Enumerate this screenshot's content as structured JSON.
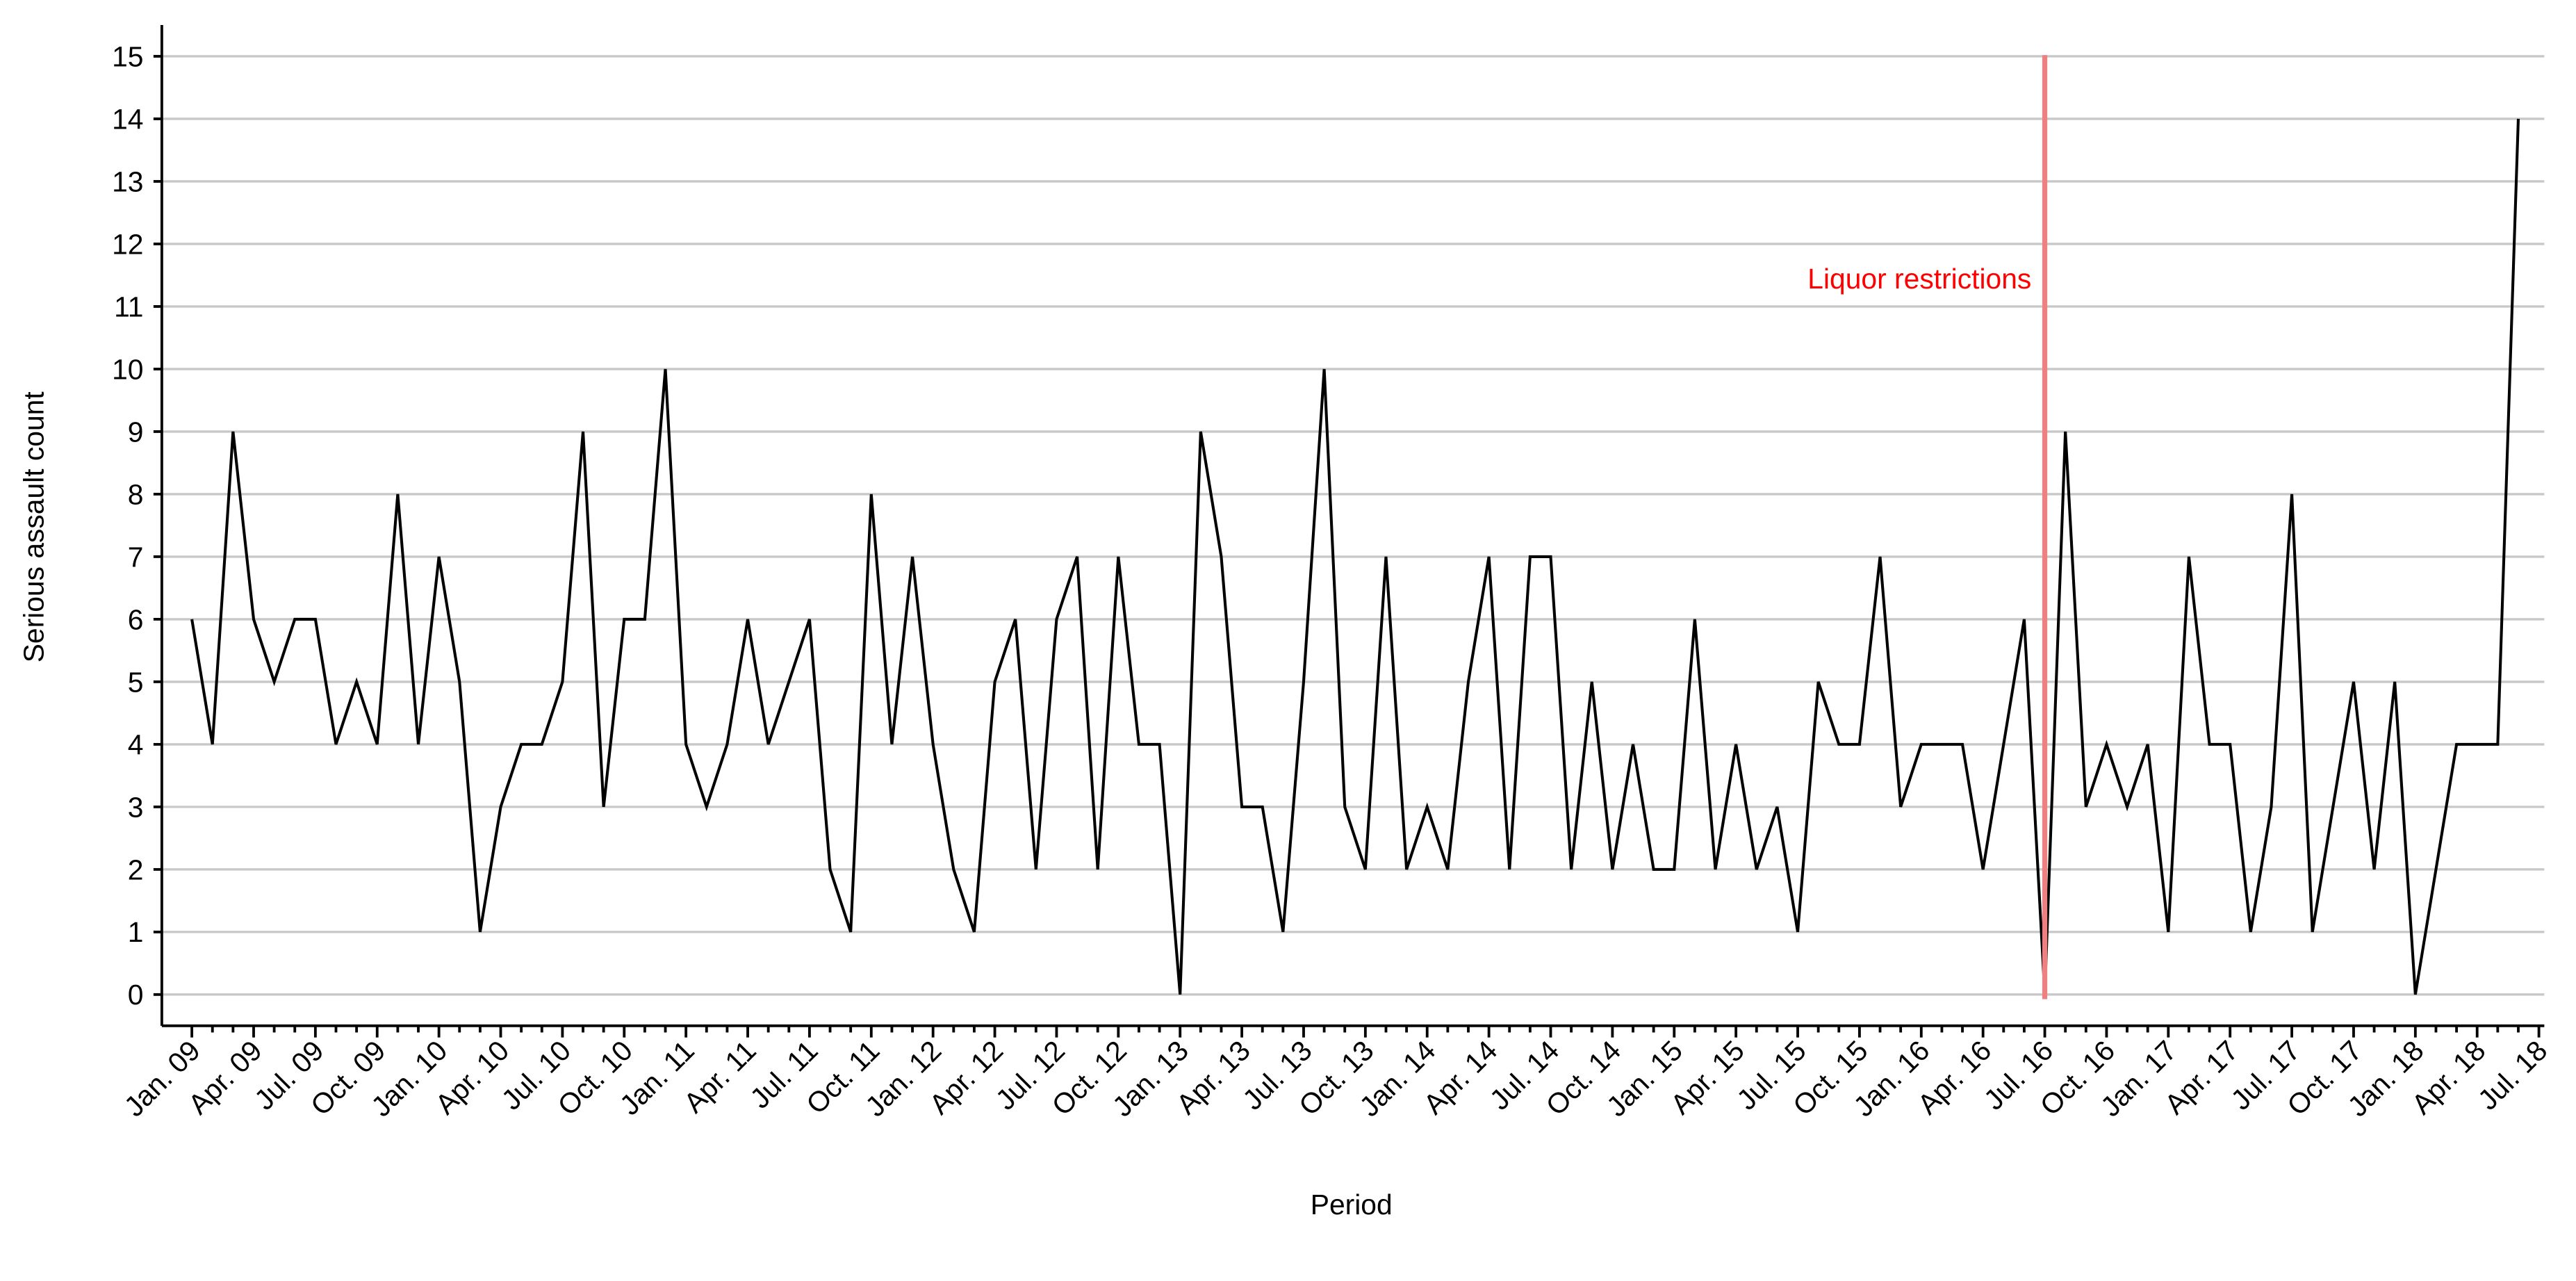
{
  "chart_data": {
    "type": "line",
    "x_label": "Period",
    "y_label": "Serious assault count",
    "categories": [
      "Jan. 09",
      null,
      null,
      "Apr. 09",
      null,
      null,
      "Jul. 09",
      null,
      null,
      "Oct. 09",
      null,
      null,
      "Jan. 10",
      null,
      null,
      "Apr. 10",
      null,
      null,
      "Jul. 10",
      null,
      null,
      "Oct. 10",
      null,
      null,
      "Jan. 11",
      null,
      null,
      "Apr. 11",
      null,
      null,
      "Jul. 11",
      null,
      null,
      "Oct. 11",
      null,
      null,
      "Jan. 12",
      null,
      null,
      "Apr. 12",
      null,
      null,
      "Jul. 12",
      null,
      null,
      "Oct. 12",
      null,
      null,
      "Jan. 13",
      null,
      null,
      "Apr. 13",
      null,
      null,
      "Jul. 13",
      null,
      null,
      "Oct. 13",
      null,
      null,
      "Jan. 14",
      null,
      null,
      "Apr. 14",
      null,
      null,
      "Jul. 14",
      null,
      null,
      "Oct. 14",
      null,
      null,
      "Jan. 15",
      null,
      null,
      "Apr. 15",
      null,
      null,
      "Jul. 15",
      null,
      null,
      "Oct. 15",
      null,
      null,
      "Jan. 16",
      null,
      null,
      "Apr. 16",
      null,
      null,
      "Jul. 16",
      null,
      null,
      "Oct. 16",
      null,
      null,
      "Jan. 17",
      null,
      null,
      "Apr. 17",
      null,
      null,
      "Jul. 17",
      null,
      null,
      "Oct. 17",
      null,
      null,
      "Jan. 18",
      null,
      null,
      "Apr. 18",
      null,
      null,
      "Jul. 18"
    ],
    "values": [
      6,
      4,
      9,
      6,
      5,
      6,
      6,
      4,
      5,
      4,
      8,
      4,
      7,
      5,
      1,
      3,
      4,
      4,
      5,
      9,
      3,
      6,
      6,
      10,
      4,
      3,
      4,
      6,
      4,
      5,
      6,
      2,
      1,
      8,
      4,
      7,
      4,
      2,
      1,
      5,
      6,
      2,
      6,
      7,
      2,
      7,
      4,
      4,
      0,
      9,
      7,
      3,
      3,
      1,
      5,
      10,
      3,
      2,
      7,
      2,
      3,
      2,
      5,
      7,
      2,
      7,
      7,
      2,
      5,
      2,
      4,
      2,
      2,
      6,
      2,
      4,
      2,
      3,
      1,
      5,
      4,
      4,
      7,
      3,
      4,
      4,
      4,
      2,
      4,
      6,
      0,
      9,
      3,
      4,
      3,
      4,
      1,
      7,
      4,
      4,
      1,
      3,
      8,
      1,
      3,
      5,
      2,
      5,
      0,
      2,
      4,
      4,
      4,
      14,
      null
    ],
    "color": "#000000",
    "ylim": [
      -0.5,
      15.5
    ],
    "yticks": [
      0,
      1,
      2,
      3,
      4,
      5,
      6,
      7,
      8,
      9,
      10,
      11,
      12,
      13,
      14,
      15
    ],
    "grid": true,
    "annotations": [
      {
        "text": "Liquor restrictions",
        "x": "Jul. 16",
        "color": "#f08080",
        "text_color": "#ff0000"
      }
    ]
  }
}
